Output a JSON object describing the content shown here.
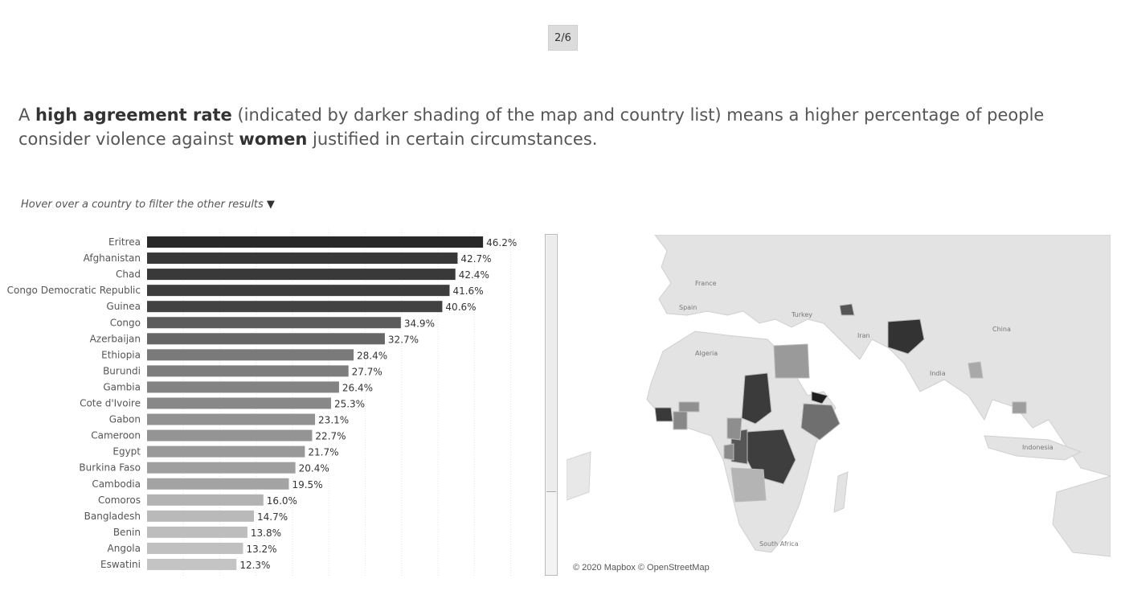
{
  "pager": {
    "label": "2/6"
  },
  "intro": {
    "p1": "A ",
    "b1": "high agreement rate",
    "p2": " (indicated by darker shading of the map and country list) means a higher percentage of people consider violence against ",
    "b2": "women",
    "p3": " justified in certain circumstances."
  },
  "hover_hint": {
    "text": "Hover over a country to filter the other results",
    "icon": "triangle-down-icon"
  },
  "map": {
    "credit": "© 2020 Mapbox © OpenStreetMap",
    "labels": [
      "France",
      "Spain",
      "Turkey",
      "Iran",
      "Algeria",
      "India",
      "China",
      "Indonesia",
      "South Africa"
    ]
  },
  "chart_data": {
    "type": "bar",
    "orientation": "horizontal",
    "categories": [
      "Eritrea",
      "Afghanistan",
      "Chad",
      "Congo Democratic Republic",
      "Guinea",
      "Congo",
      "Azerbaijan",
      "Ethiopia",
      "Burundi",
      "Gambia",
      "Cote d'Ivoire",
      "Gabon",
      "Cameroon",
      "Egypt",
      "Burkina Faso",
      "Cambodia",
      "Comoros",
      "Bangladesh",
      "Benin",
      "Angola",
      "Eswatini"
    ],
    "values": [
      46.2,
      42.7,
      42.4,
      41.6,
      40.6,
      34.9,
      32.7,
      28.4,
      27.7,
      26.4,
      25.3,
      23.1,
      22.7,
      21.7,
      20.4,
      19.5,
      16.0,
      14.7,
      13.8,
      13.2,
      12.3
    ],
    "value_labels": [
      "46.2%",
      "42.7%",
      "42.4%",
      "41.6%",
      "40.6%",
      "34.9%",
      "32.7%",
      "28.4%",
      "27.7%",
      "26.4%",
      "25.3%",
      "23.1%",
      "22.7%",
      "21.7%",
      "20.4%",
      "19.5%",
      "16.0%",
      "14.7%",
      "13.8%",
      "13.2%",
      "12.3%"
    ],
    "xlim": [
      0,
      50
    ],
    "grid": true,
    "color_encoding": "darker shade = higher value",
    "colors": {
      "dark": "#2b2b2b",
      "light": "#c4c4c4"
    }
  }
}
